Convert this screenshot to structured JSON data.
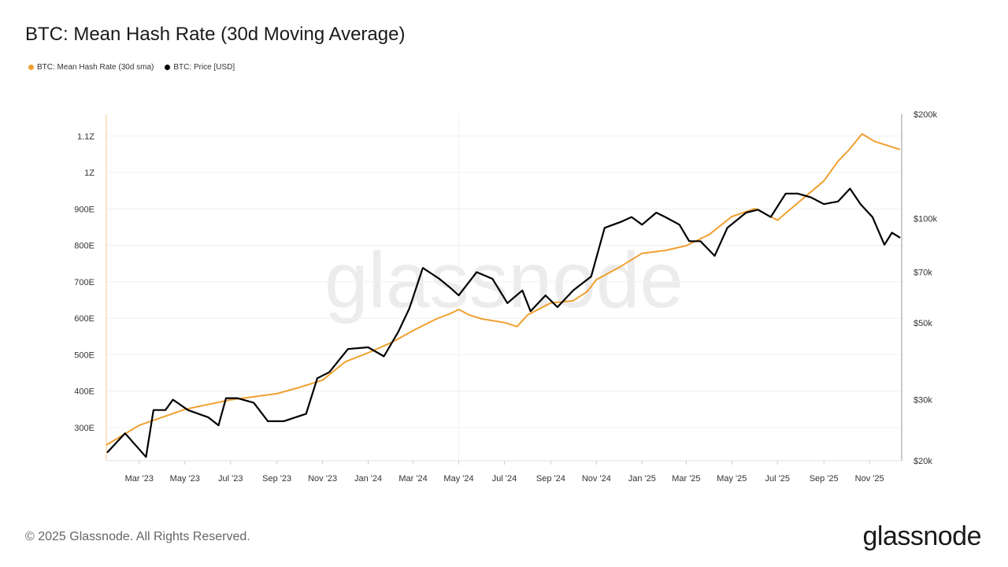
{
  "title": "BTC: Mean Hash Rate (30d Moving Average)",
  "legend": [
    {
      "label": "BTC: Mean Hash Rate (30d sma)",
      "color": "#f0a030"
    },
    {
      "label": "BTC: Price [USD]",
      "color": "#000000"
    }
  ],
  "watermark": "glassnode",
  "footer": {
    "copyright": "© 2025 Glassnode. All Rights Reserved.",
    "logo": "glassnode"
  },
  "chart_data": {
    "type": "line",
    "title": "BTC: Mean Hash Rate (30d Moving Average)",
    "x_ticks": [
      {
        "date": "2023-03-01",
        "label": "Mar '23"
      },
      {
        "date": "2023-05-01",
        "label": "May '23"
      },
      {
        "date": "2023-07-01",
        "label": "Jul '23"
      },
      {
        "date": "2023-09-01",
        "label": "Sep '23"
      },
      {
        "date": "2023-11-01",
        "label": "Nov '23"
      },
      {
        "date": "2024-01-01",
        "label": "Jan '24"
      },
      {
        "date": "2024-03-01",
        "label": "Mar '24"
      },
      {
        "date": "2024-05-01",
        "label": "May '24"
      },
      {
        "date": "2024-07-01",
        "label": "Jul '24"
      },
      {
        "date": "2024-09-01",
        "label": "Sep '24"
      },
      {
        "date": "2024-11-01",
        "label": "Nov '24"
      },
      {
        "date": "2025-01-01",
        "label": "Jan '25"
      },
      {
        "date": "2025-03-01",
        "label": "Mar '25"
      },
      {
        "date": "2025-05-01",
        "label": "May '25"
      },
      {
        "date": "2025-07-01",
        "label": "Jul '25"
      },
      {
        "date": "2025-09-01",
        "label": "Sep '25"
      },
      {
        "date": "2025-11-01",
        "label": "Nov '25"
      }
    ],
    "xlim": [
      "2023-01-16",
      "2025-12-14"
    ],
    "y_left": {
      "unit": "EH/s",
      "lim": [
        209,
        1160
      ],
      "scale": "linear",
      "ticks": [
        {
          "v": 300,
          "label": "300E"
        },
        {
          "v": 400,
          "label": "400E"
        },
        {
          "v": 500,
          "label": "500E"
        },
        {
          "v": 600,
          "label": "600E"
        },
        {
          "v": 700,
          "label": "700E"
        },
        {
          "v": 800,
          "label": "800E"
        },
        {
          "v": 900,
          "label": "900E"
        },
        {
          "v": 1000,
          "label": "1Z"
        },
        {
          "v": 1100,
          "label": "1.1Z"
        }
      ]
    },
    "y_right": {
      "unit": "USD",
      "lim": [
        20000,
        200000
      ],
      "scale": "log",
      "ticks": [
        {
          "v": 20000,
          "label": "$20k"
        },
        {
          "v": 30000,
          "label": "$30k"
        },
        {
          "v": 50000,
          "label": "$50k"
        },
        {
          "v": 70000,
          "label": "$70k"
        },
        {
          "v": 100000,
          "label": "$100k"
        },
        {
          "v": 200000,
          "label": "$200k"
        }
      ]
    },
    "grid": true,
    "legend_position": "top-left",
    "series": [
      {
        "name": "BTC: Mean Hash Rate (30d sma)",
        "axis": "left",
        "color": "#f0a030",
        "points": [
          [
            "2023-01-16",
            252
          ],
          [
            "2023-03-01",
            306
          ],
          [
            "2023-05-01",
            350
          ],
          [
            "2023-07-01",
            376
          ],
          [
            "2023-09-01",
            393
          ],
          [
            "2023-10-01",
            410
          ],
          [
            "2023-11-01",
            430
          ],
          [
            "2023-12-01",
            480
          ],
          [
            "2024-01-01",
            505
          ],
          [
            "2024-02-01",
            533
          ],
          [
            "2024-03-01",
            566
          ],
          [
            "2024-04-01",
            598
          ],
          [
            "2024-04-20",
            613
          ],
          [
            "2024-05-01",
            624
          ],
          [
            "2024-05-15",
            609
          ],
          [
            "2024-06-01",
            598
          ],
          [
            "2024-07-01",
            588
          ],
          [
            "2024-07-18",
            577
          ],
          [
            "2024-08-01",
            609
          ],
          [
            "2024-09-01",
            642
          ],
          [
            "2024-10-01",
            648
          ],
          [
            "2024-10-20",
            674
          ],
          [
            "2024-11-01",
            706
          ],
          [
            "2024-12-01",
            739
          ],
          [
            "2025-01-01",
            778
          ],
          [
            "2025-02-01",
            786
          ],
          [
            "2025-03-01",
            799
          ],
          [
            "2025-04-01",
            830
          ],
          [
            "2025-05-01",
            879
          ],
          [
            "2025-06-01",
            901
          ],
          [
            "2025-07-01",
            869
          ],
          [
            "2025-08-01",
            923
          ],
          [
            "2025-09-01",
            977
          ],
          [
            "2025-09-20",
            1031
          ],
          [
            "2025-10-05",
            1063
          ],
          [
            "2025-10-22",
            1106
          ],
          [
            "2025-11-08",
            1085
          ],
          [
            "2025-12-12",
            1063
          ]
        ]
      },
      {
        "name": "BTC: Price [USD]",
        "axis": "right",
        "color": "#000000",
        "points": [
          [
            "2023-01-17",
            21100
          ],
          [
            "2023-02-10",
            24000
          ],
          [
            "2023-03-10",
            20500
          ],
          [
            "2023-03-20",
            28000
          ],
          [
            "2023-04-05",
            28000
          ],
          [
            "2023-04-15",
            30000
          ],
          [
            "2023-05-05",
            28000
          ],
          [
            "2023-06-01",
            26700
          ],
          [
            "2023-06-15",
            25300
          ],
          [
            "2023-06-25",
            30300
          ],
          [
            "2023-07-10",
            30300
          ],
          [
            "2023-08-01",
            29400
          ],
          [
            "2023-08-20",
            26000
          ],
          [
            "2023-09-10",
            26000
          ],
          [
            "2023-10-10",
            27300
          ],
          [
            "2023-10-25",
            34600
          ],
          [
            "2023-11-10",
            36000
          ],
          [
            "2023-12-05",
            42000
          ],
          [
            "2024-01-01",
            42500
          ],
          [
            "2024-01-22",
            40000
          ],
          [
            "2024-02-10",
            47000
          ],
          [
            "2024-02-25",
            55000
          ],
          [
            "2024-03-14",
            72000
          ],
          [
            "2024-04-05",
            67000
          ],
          [
            "2024-04-20",
            63000
          ],
          [
            "2024-05-01",
            60000
          ],
          [
            "2024-05-25",
            70000
          ],
          [
            "2024-06-15",
            67000
          ],
          [
            "2024-07-05",
            57000
          ],
          [
            "2024-07-25",
            62000
          ],
          [
            "2024-08-05",
            54000
          ],
          [
            "2024-08-25",
            60000
          ],
          [
            "2024-09-10",
            55500
          ],
          [
            "2024-10-01",
            62000
          ],
          [
            "2024-10-25",
            68000
          ],
          [
            "2024-11-12",
            94000
          ],
          [
            "2024-12-05",
            98000
          ],
          [
            "2024-12-18",
            101000
          ],
          [
            "2025-01-01",
            96000
          ],
          [
            "2025-01-20",
            104000
          ],
          [
            "2025-02-01",
            101000
          ],
          [
            "2025-02-20",
            96000
          ],
          [
            "2025-03-05",
            86000
          ],
          [
            "2025-03-20",
            86000
          ],
          [
            "2025-04-08",
            78000
          ],
          [
            "2025-04-25",
            94000
          ],
          [
            "2025-05-20",
            104000
          ],
          [
            "2025-06-05",
            106000
          ],
          [
            "2025-06-22",
            101000
          ],
          [
            "2025-07-12",
            118000
          ],
          [
            "2025-07-28",
            118000
          ],
          [
            "2025-08-15",
            115000
          ],
          [
            "2025-09-01",
            110000
          ],
          [
            "2025-09-20",
            112000
          ],
          [
            "2025-10-06",
            122000
          ],
          [
            "2025-10-20",
            110000
          ],
          [
            "2025-11-05",
            101000
          ],
          [
            "2025-11-21",
            84000
          ],
          [
            "2025-12-01",
            91000
          ],
          [
            "2025-12-12",
            88000
          ]
        ]
      }
    ]
  }
}
